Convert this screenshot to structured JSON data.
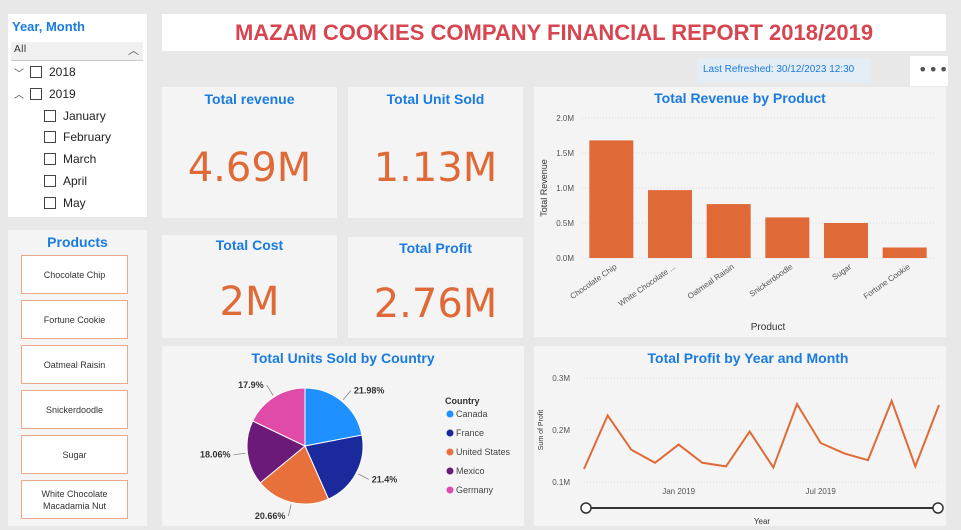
{
  "report_title": "MAZAM COOKIES COMPANY FINANCIAL REPORT 2018/2019",
  "last_refreshed": "Last Refreshed: 30/12/2023 12:30",
  "more_options_icon": "more-horizontal-icon",
  "date_slicer": {
    "title": "Year, Month",
    "all_label": "All",
    "items": [
      {
        "label": "2018",
        "level": 0,
        "expanded": false
      },
      {
        "label": "2019",
        "level": 0,
        "expanded": true
      },
      {
        "label": "January",
        "level": 1
      },
      {
        "label": "February",
        "level": 1
      },
      {
        "label": "March",
        "level": 1
      },
      {
        "label": "April",
        "level": 1
      },
      {
        "label": "May",
        "level": 1
      }
    ]
  },
  "products_slicer": {
    "title": "Products",
    "items": [
      "Chocolate Chip",
      "Fortune Cookie",
      "Oatmeal Raisin",
      "Snickerdoodle",
      "Sugar",
      "White Chocolate Macadamia Nut"
    ]
  },
  "kpis": {
    "total_revenue": {
      "label": "Total revenue",
      "value": "4.69M"
    },
    "total_units": {
      "label": "Total Unit Sold",
      "value": "1.13M"
    },
    "total_cost": {
      "label": "Total Cost",
      "value": "2M"
    },
    "total_profit": {
      "label": "Total Profit",
      "value": "2.76M"
    }
  },
  "colors": {
    "accent_blue": "#1a7be0",
    "accent_orange": "#e06a37",
    "title_red": "#d64550"
  },
  "chart_data": [
    {
      "type": "bar",
      "title": "Total Revenue by Product",
      "xlabel": "Product",
      "ylabel": "Total Revenue",
      "categories": [
        "Chocolate Chip",
        "White Chocolate ...",
        "Oatmeal Raisin",
        "Snickerdoodle",
        "Sugar",
        "Fortune Cookie"
      ],
      "values": [
        1.68,
        0.97,
        0.77,
        0.58,
        0.5,
        0.15
      ],
      "yticks": [
        "0.0M",
        "0.5M",
        "1.0M",
        "1.5M",
        "2.0M"
      ],
      "ylim": [
        0,
        2.0
      ],
      "color": "#e06a37"
    },
    {
      "type": "pie",
      "title": "Total Units Sold by Country",
      "legend_title": "Country",
      "categories": [
        "Canada",
        "France",
        "United States",
        "Mexico",
        "Germany"
      ],
      "values": [
        21.98,
        21.4,
        20.66,
        18.06,
        17.9
      ],
      "labels": [
        "21.98%",
        "21.4%",
        "20.66%",
        "18.06%",
        "17.9%"
      ],
      "colors": [
        "#1e90ff",
        "#1a2a9c",
        "#e8703a",
        "#6b1a7a",
        "#e04aa8"
      ],
      "legend_position": "right"
    },
    {
      "type": "line",
      "title": "Total Profit by Year and Month",
      "xlabel": "Year",
      "ylabel": "Sum of Profit",
      "x": [
        "2018-09",
        "2018-10",
        "2018-11",
        "2018-12",
        "2019-01",
        "2019-02",
        "2019-03",
        "2019-04",
        "2019-05",
        "2019-06",
        "2019-07",
        "2019-08",
        "2019-09",
        "2019-10",
        "2019-11",
        "2019-12"
      ],
      "values": [
        0.125,
        0.228,
        0.162,
        0.137,
        0.172,
        0.137,
        0.13,
        0.197,
        0.128,
        0.25,
        0.175,
        0.155,
        0.142,
        0.256,
        0.13,
        0.248
      ],
      "xticks": [
        {
          "label": "Jan 2019",
          "x": "2019-01"
        },
        {
          "label": "Jul 2019",
          "x": "2019-07"
        }
      ],
      "yticks": [
        "0.1M",
        "0.2M",
        "0.3M"
      ],
      "ylim": [
        0.1,
        0.3
      ],
      "color": "#e06a37"
    }
  ]
}
